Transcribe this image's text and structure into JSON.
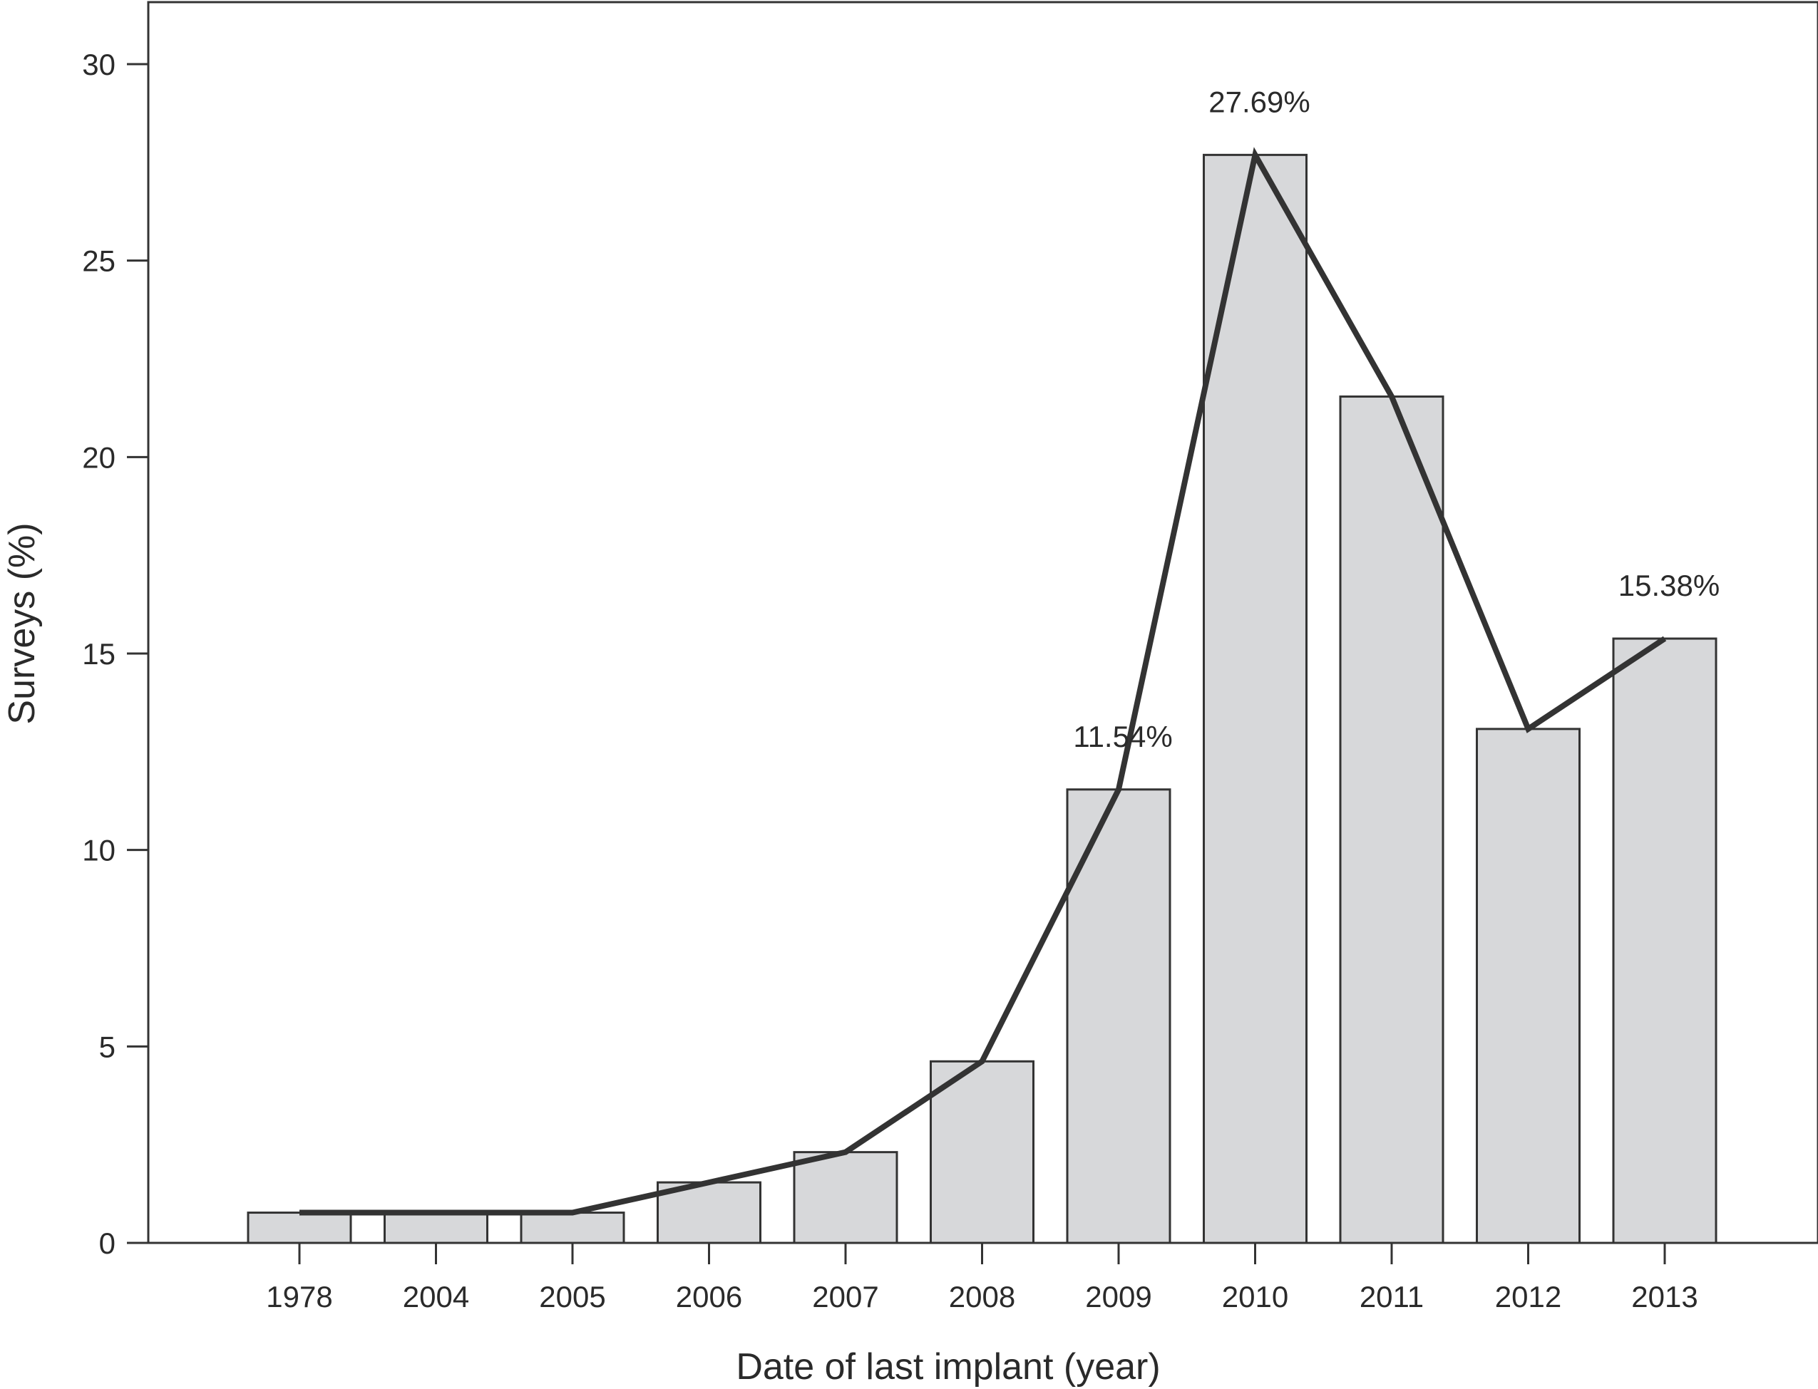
{
  "chart_data": {
    "type": "bar",
    "title": "",
    "xlabel": "Date of last implant (year)",
    "ylabel": "Surveys (%)",
    "categories": [
      "1978",
      "2004",
      "2005",
      "2006",
      "2007",
      "2008",
      "2009",
      "2010",
      "2011",
      "2012",
      "2013"
    ],
    "values": [
      0.77,
      0.77,
      0.77,
      1.54,
      2.31,
      4.62,
      11.54,
      27.69,
      21.54,
      13.08,
      15.38
    ],
    "line_overlay": true,
    "ylim": [
      0,
      30
    ],
    "yticks": [
      "0",
      "5",
      "10",
      "15",
      "20",
      "25",
      "30"
    ],
    "annotations": [
      {
        "category": "2009",
        "text": "11.54%"
      },
      {
        "category": "2010",
        "text": "27.69%"
      },
      {
        "category": "2013",
        "text": "15.38%"
      }
    ],
    "grid": false,
    "legend": "none",
    "colors": {
      "bar_fill": "#d7d8da",
      "bar_stroke": "#333333",
      "line": "#333333",
      "axis": "#333333"
    }
  }
}
